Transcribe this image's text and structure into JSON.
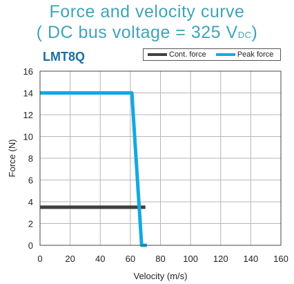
{
  "header": {
    "title_line1": "Force and velocity curve",
    "title_line2_prefix": "( DC bus voltage = 325 V",
    "title_line2_sub": "DC",
    "title_line2_suffix": ")",
    "model": "LMT8Q"
  },
  "legend": {
    "items": [
      {
        "label": "Cont. force",
        "color": "#404040"
      },
      {
        "label": "Peak force",
        "color": "#12a9e0"
      }
    ]
  },
  "chart_data": {
    "type": "line",
    "title": "Force and velocity curve ( DC bus voltage = 325 VDC)",
    "xlabel": "Velocity (m/s)",
    "ylabel": "Force (N)",
    "xlim": [
      0,
      160
    ],
    "ylim": [
      0,
      16
    ],
    "xticks": [
      0,
      20,
      40,
      60,
      80,
      100,
      120,
      140,
      160
    ],
    "yticks": [
      0,
      2,
      4,
      6,
      8,
      10,
      12,
      14,
      16
    ],
    "grid": true,
    "legend_position": "top-right",
    "series": [
      {
        "name": "Cont. force",
        "color": "#404040",
        "x": [
          0,
          65,
          70
        ],
        "y": [
          3.5,
          3.5,
          3.5
        ]
      },
      {
        "name": "Peak force",
        "color": "#12a9e0",
        "x": [
          0,
          60,
          61,
          67.5,
          71
        ],
        "y": [
          14,
          14,
          14,
          0,
          0
        ]
      }
    ]
  }
}
